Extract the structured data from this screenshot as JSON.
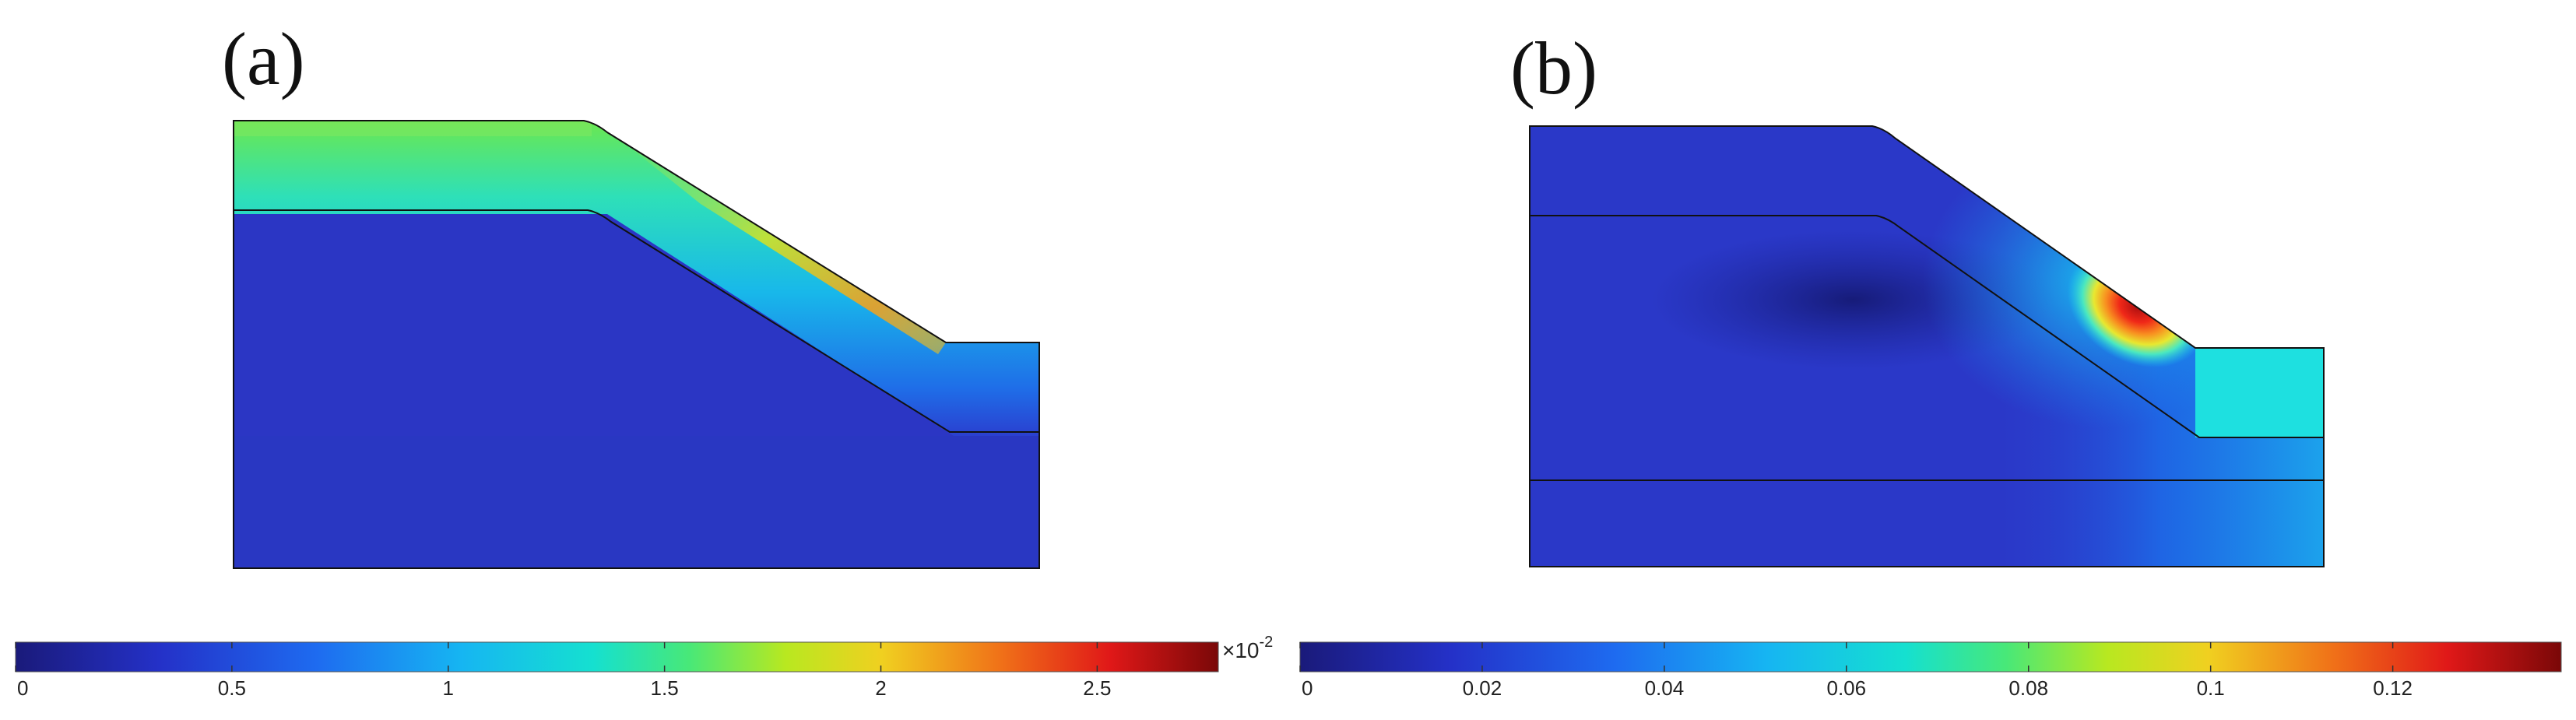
{
  "panels": [
    {
      "label": "(a)",
      "colorbar": {
        "ticks": [
          "0",
          "0.5",
          "1",
          "1.5",
          "2",
          "2.5"
        ],
        "tick_values": [
          0,
          0.5,
          1,
          1.5,
          2,
          2.5
        ],
        "max": 2.78,
        "multiplier": "×10",
        "multiplier_exp": "-2"
      }
    },
    {
      "label": "(b)",
      "colorbar": {
        "ticks": [
          "0",
          "0.02",
          "0.04",
          "0.06",
          "0.08",
          "0.1",
          "0.12"
        ],
        "tick_values": [
          0,
          0.02,
          0.04,
          0.06,
          0.08,
          0.1,
          0.12
        ],
        "max": 0.1385
      }
    }
  ],
  "colors": {
    "jet": [
      "#00007f",
      "#0000ff",
      "#007fff",
      "#00ffff",
      "#7fff7f",
      "#ffff00",
      "#ff7f00",
      "#ff0000",
      "#7f0000"
    ],
    "background": "#2a2fbf",
    "outline": "#111111"
  }
}
